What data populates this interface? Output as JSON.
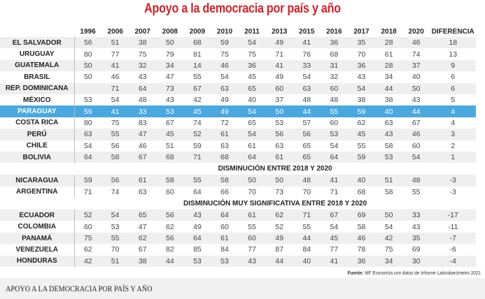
{
  "title": "Apoyo a la democracia por país y año",
  "columns": [
    "1996",
    "2006",
    "2007",
    "2008",
    "2009",
    "2010",
    "2011",
    "2013",
    "2015",
    "2016",
    "2017",
    "2018",
    "2020",
    "DIFERENCIA"
  ],
  "highlight_color": "#4aa8e0",
  "title_color": "#d2232a",
  "groups": [
    {
      "heading": "",
      "rows": [
        {
          "country": "EL SALVADOR",
          "values": [
            "56",
            "51",
            "38",
            "50",
            "68",
            "59",
            "54",
            "49",
            "41",
            "36",
            "35",
            "28",
            "46",
            "18"
          ]
        },
        {
          "country": "URUGUAY",
          "values": [
            "80",
            "77",
            "75",
            "79",
            "81",
            "75",
            "75",
            "71",
            "76",
            "68",
            "70",
            "61",
            "74",
            "13"
          ]
        },
        {
          "country": "GUATEMALA",
          "values": [
            "50",
            "41",
            "32",
            "34",
            "14",
            "46",
            "36",
            "41",
            "33",
            "31",
            "36",
            "28",
            "37",
            "9"
          ]
        },
        {
          "country": "BRASIL",
          "values": [
            "50",
            "46",
            "43",
            "47",
            "55",
            "54",
            "45",
            "49",
            "54",
            "32",
            "43",
            "34",
            "40",
            "6"
          ]
        },
        {
          "country": "REP. DOMINICANA",
          "values": [
            "",
            "71",
            "64",
            "73",
            "67",
            "63",
            "65",
            "60",
            "63",
            "60",
            "54",
            "44",
            "50",
            "6"
          ]
        },
        {
          "country": "MÉXICO",
          "values": [
            "53",
            "54",
            "48",
            "43",
            "42",
            "49",
            "40",
            "37",
            "48",
            "48",
            "38",
            "38",
            "43",
            "5"
          ]
        },
        {
          "country": "PARAGUAY",
          "highlight": true,
          "values": [
            "59",
            "41",
            "33",
            "53",
            "45",
            "49",
            "54",
            "50",
            "44",
            "55",
            "59",
            "40",
            "44",
            "4"
          ]
        },
        {
          "country": "COSTA RICA",
          "values": [
            "80",
            "75",
            "83",
            "67",
            "74",
            "72",
            "65",
            "53",
            "57",
            "60",
            "62",
            "63",
            "67",
            "4"
          ]
        },
        {
          "country": "PERÚ",
          "values": [
            "63",
            "55",
            "47",
            "45",
            "52",
            "61",
            "54",
            "56",
            "56",
            "53",
            "45",
            "43",
            "46",
            "3"
          ]
        },
        {
          "country": "CHILE",
          "values": [
            "54",
            "56",
            "46",
            "51",
            "59",
            "63",
            "61",
            "63",
            "65",
            "54",
            "55",
            "58",
            "60",
            "2"
          ]
        },
        {
          "country": "BOLIVIA",
          "values": [
            "64",
            "58",
            "67",
            "68",
            "71",
            "68",
            "64",
            "61",
            "65",
            "64",
            "59",
            "53",
            "54",
            "1"
          ]
        }
      ]
    },
    {
      "heading": "DISMINUCIÓN ENTRE 2018 Y 2020",
      "rows": [
        {
          "country": "NICARAGUA",
          "values": [
            "59",
            "56",
            "61",
            "58",
            "55",
            "58",
            "50",
            "50",
            "48",
            "41",
            "40",
            "51",
            "48",
            "-3"
          ]
        },
        {
          "country": "ARGENTINA",
          "values": [
            "71",
            "74",
            "63",
            "60",
            "64",
            "66",
            "70",
            "73",
            "70",
            "71",
            "68",
            "58",
            "55",
            "-3"
          ]
        }
      ]
    },
    {
      "heading": "DISMINUCIÓN MUY SIGNIFICATIVA ENTRE 2018 Y 2020",
      "rows": [
        {
          "country": "ECUADOR",
          "values": [
            "52",
            "54",
            "65",
            "56",
            "43",
            "64",
            "61",
            "62",
            "71",
            "67",
            "69",
            "50",
            "33",
            "-17"
          ]
        },
        {
          "country": "COLOMBIA",
          "values": [
            "60",
            "53",
            "47",
            "62",
            "49",
            "60",
            "55",
            "52",
            "55",
            "54",
            "58",
            "54",
            "43",
            "-11"
          ]
        },
        {
          "country": "PANAMÁ",
          "values": [
            "75",
            "55",
            "62",
            "56",
            "64",
            "61",
            "60",
            "49",
            "44",
            "45",
            "46",
            "42",
            "35",
            "-7"
          ]
        },
        {
          "country": "VENEZUELA",
          "values": [
            "62",
            "70",
            "67",
            "82",
            "85",
            "84",
            "77",
            "87",
            "84",
            "77",
            "78",
            "75",
            "69",
            "-6"
          ]
        },
        {
          "country": "HONDURAS",
          "values": [
            "42",
            "51",
            "38",
            "44",
            "53",
            "53",
            "43",
            "44",
            "40",
            "41",
            "36",
            "34",
            "30",
            "-4"
          ]
        }
      ]
    }
  ],
  "source_label": "Fuente:",
  "source_text": " MF Economía con datos de Informe Latinobarómetro 2021",
  "caption": "APOYO A LA DEMOCRACIA POR PAÍS Y AÑO"
}
